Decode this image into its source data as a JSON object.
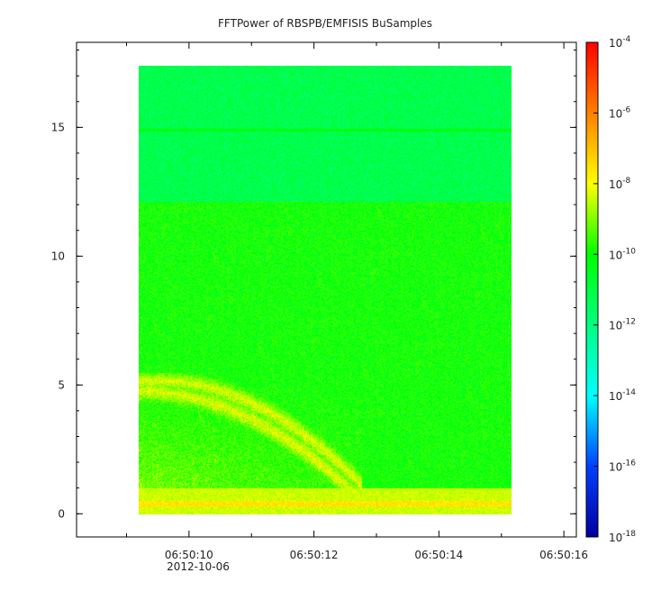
{
  "chart_data": {
    "type": "heatmap",
    "title": "FFTPower of RBSPB/EMFISIS  BuSamples",
    "xlabel": "",
    "ylabel": "",
    "x_ticks": [
      "06:50:10",
      "06:50:12",
      "06:50:14",
      "06:50:16"
    ],
    "x_sub_label": "2012-10-06",
    "x_range_seconds": [
      8.2,
      16.2
    ],
    "x_data_range_seconds": [
      9.2,
      15.1
    ],
    "y_ticks": [
      0,
      5,
      10,
      15
    ],
    "ylim": [
      -0.9,
      18.3
    ],
    "y_data_range": [
      0,
      17.5
    ],
    "colorbar": {
      "scale": "log",
      "range": [
        1e-18,
        0.0001
      ],
      "tick_mantissa": [
        "10",
        "10",
        "10",
        "10",
        "10",
        "10",
        "10",
        "10"
      ],
      "tick_exponents": [
        "-18",
        "-16",
        "-14",
        "-12",
        "-10",
        "-8",
        "-6",
        "-4"
      ],
      "colormap": [
        "#0000a0",
        "#0040ff",
        "#00ffff",
        "#00ff80",
        "#00ff00",
        "#ffff00",
        "#ff8000",
        "#ff0000"
      ]
    },
    "features": {
      "background_low_freq_log10_power": -10,
      "background_high_freq_log10_power": -11.2,
      "band_boundary_frequency": 12.2,
      "narrow_line_frequency": 15.0,
      "low_freq_intense_band": [
        0,
        1.0
      ],
      "emission_region": [
        0,
        5.5
      ]
    }
  }
}
